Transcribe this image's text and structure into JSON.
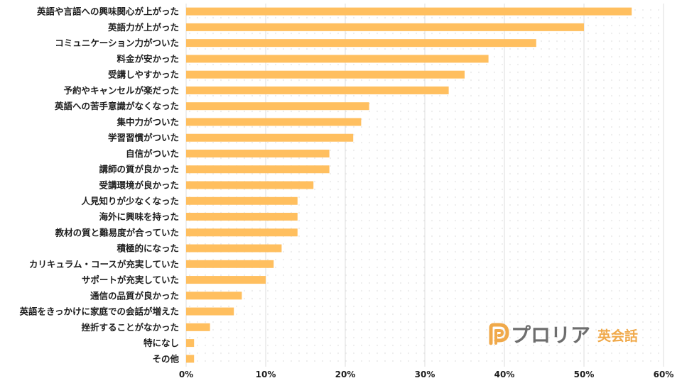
{
  "chart_data": {
    "type": "bar",
    "orientation": "horizontal",
    "categories": [
      "英語や言語への興味関心が上がった",
      "英語力が上がった",
      "コミュニケーション力がついた",
      "料金が安かった",
      "受講しやすかった",
      "予約やキャンセルが楽だった",
      "英語への苦手意識がなくなった",
      "集中力がついた",
      "学習習慣がついた",
      "自信がついた",
      "講師の質が良かった",
      "受講環境が良かった",
      "人見知りが少なくなった",
      "海外に興味を持った",
      "教材の質と難易度が合っていた",
      "積極的になった",
      "カリキュラム・コースが充実していた",
      "サポートが充実していた",
      "通信の品質が良かった",
      "英語をきっかけに家庭での会話が増えた",
      "挫折することがなかった",
      "特になし",
      "その他"
    ],
    "values": [
      56,
      50,
      44,
      38,
      35,
      33,
      23,
      22,
      21,
      18,
      18,
      16,
      14,
      14,
      14,
      12,
      11,
      10,
      7,
      6,
      3,
      1,
      1
    ],
    "xlim": [
      0,
      60
    ],
    "xticks": [
      "0%",
      "10%",
      "20%",
      "30%",
      "40%",
      "50%",
      "60%"
    ],
    "grid": true,
    "bar_color": "#ffbf5f",
    "grid_color": "#dcdcdc"
  },
  "logo": {
    "name": "プロリア",
    "sub": "英会話",
    "icon": "p-logo-icon",
    "icon_color": "#f0a94a"
  }
}
